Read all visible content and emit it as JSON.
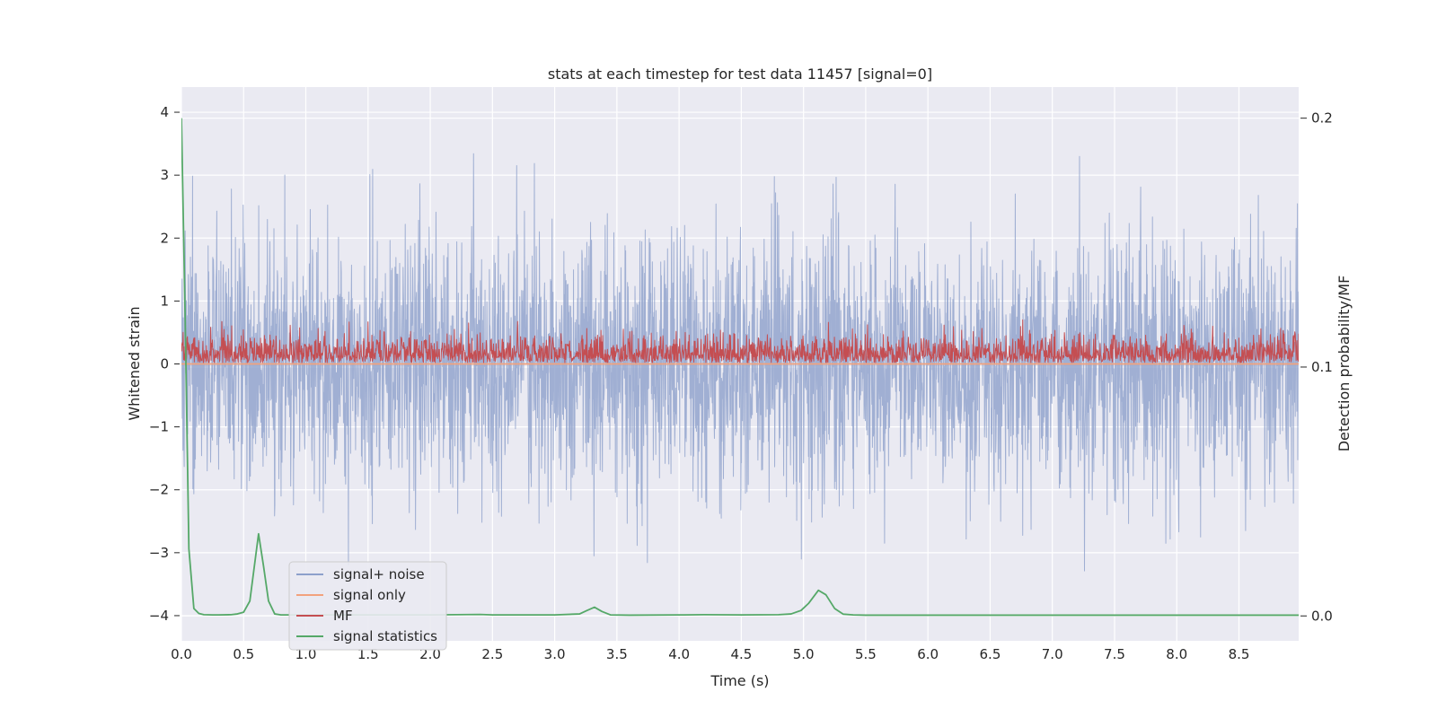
{
  "chart_data": {
    "type": "line",
    "title": "stats at each timestep for test data 11457 [signal=0]",
    "xlabel": "Time (s)",
    "ylabel": "Whitened strain",
    "y2label": "Detection probability/MF",
    "xlim": [
      0,
      8.98
    ],
    "ylim": [
      -4.4,
      4.4
    ],
    "y2lim": [
      -0.01,
      0.2125
    ],
    "x_ticks": [
      0.0,
      0.5,
      1.0,
      1.5,
      2.0,
      2.5,
      3.0,
      3.5,
      4.0,
      4.5,
      5.0,
      5.5,
      6.0,
      6.5,
      7.0,
      7.5,
      8.0,
      8.5
    ],
    "x_tick_labels": [
      "0.0",
      "0.5",
      "1.0",
      "1.5",
      "2.0",
      "2.5",
      "3.0",
      "3.5",
      "4.0",
      "4.5",
      "5.0",
      "5.5",
      "6.0",
      "6.5",
      "7.0",
      "7.5",
      "8.0",
      "8.5"
    ],
    "y_ticks": [
      -4,
      -3,
      -2,
      -1,
      0,
      1,
      2,
      3,
      4
    ],
    "y_tick_labels": [
      "−4",
      "−3",
      "−2",
      "−1",
      "0",
      "1",
      "2",
      "3",
      "4"
    ],
    "y2_ticks": [
      0.0,
      0.1,
      0.2
    ],
    "y2_tick_labels": [
      "0.0",
      "0.1",
      "0.2"
    ],
    "grid": true,
    "legend_position": "lower-left",
    "legend": [
      {
        "label": "signal+ noise",
        "color": "#8da0cb"
      },
      {
        "label": "signal only",
        "color": "#f2a27d"
      },
      {
        "label": "MF",
        "color": "#c44e52"
      },
      {
        "label": "signal statistics",
        "color": "#55a868"
      }
    ],
    "series": [
      {
        "name": "signal+ noise",
        "axis": "left",
        "color": "#8da0cb",
        "alpha": 0.8,
        "synthetic_noise": {
          "n": 3600,
          "amplitude_typical": 1.0,
          "peak_max": 4.0,
          "peak_min": -3.9,
          "seed": 11457
        }
      },
      {
        "name": "signal only",
        "axis": "left",
        "color": "#f2a27d",
        "x": [
          0.0,
          8.98
        ],
        "y": [
          0.0,
          0.0
        ]
      },
      {
        "name": "MF",
        "axis": "left",
        "color": "#c44e52",
        "synthetic_noise": {
          "n": 2600,
          "base": 0.02,
          "amplitude_typical": 0.35,
          "peak_max": 0.98,
          "seed": 7
        }
      },
      {
        "name": "signal statistics",
        "axis": "right",
        "color": "#55a868",
        "x": [
          0.0,
          0.03,
          0.06,
          0.1,
          0.14,
          0.18,
          0.25,
          0.3,
          0.4,
          0.45,
          0.5,
          0.55,
          0.62,
          0.66,
          0.7,
          0.75,
          0.8,
          0.9,
          1.0,
          1.2,
          1.5,
          2.0,
          2.2,
          2.4,
          2.5,
          2.8,
          3.0,
          3.2,
          3.26,
          3.32,
          3.38,
          3.45,
          3.6,
          4.0,
          4.2,
          4.5,
          4.8,
          4.9,
          4.98,
          5.04,
          5.12,
          5.18,
          5.25,
          5.32,
          5.4,
          5.5,
          6.0,
          7.0,
          8.0,
          8.98
        ],
        "y": [
          0.2,
          0.12,
          0.027,
          0.003,
          0.001,
          0.0005,
          0.0004,
          0.0004,
          0.0005,
          0.0008,
          0.0015,
          0.006,
          0.033,
          0.02,
          0.006,
          0.0008,
          0.0004,
          0.0004,
          0.0004,
          0.0004,
          0.0004,
          0.0004,
          0.0005,
          0.0006,
          0.0004,
          0.0004,
          0.0004,
          0.0008,
          0.0022,
          0.0035,
          0.0018,
          0.0004,
          0.0003,
          0.0004,
          0.0005,
          0.0004,
          0.0005,
          0.0008,
          0.0022,
          0.005,
          0.0103,
          0.0085,
          0.003,
          0.0007,
          0.0004,
          0.0003,
          0.0003,
          0.0003,
          0.0003,
          0.0003
        ]
      }
    ]
  }
}
